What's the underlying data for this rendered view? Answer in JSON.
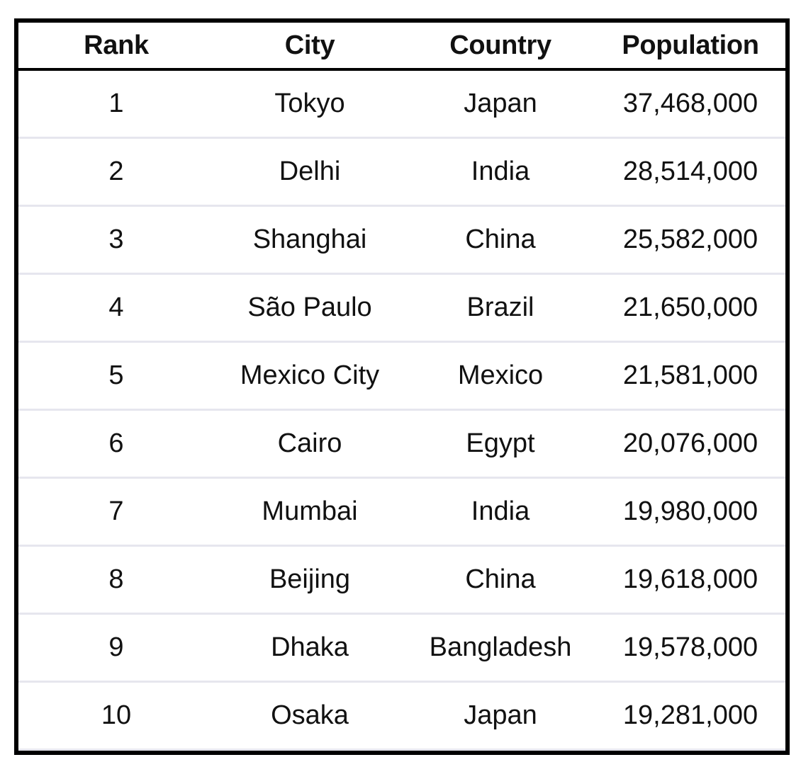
{
  "table": {
    "columns": [
      "Rank",
      "City",
      "Country",
      "Population"
    ],
    "rows": [
      {
        "rank": "1",
        "city": "Tokyo",
        "country": "Japan",
        "population": "37,468,000"
      },
      {
        "rank": "2",
        "city": "Delhi",
        "country": "India",
        "population": "28,514,000"
      },
      {
        "rank": "3",
        "city": "Shanghai",
        "country": "China",
        "population": "25,582,000"
      },
      {
        "rank": "4",
        "city": "São Paulo",
        "country": "Brazil",
        "population": "21,650,000"
      },
      {
        "rank": "5",
        "city": "Mexico City",
        "country": "Mexico",
        "population": "21,581,000"
      },
      {
        "rank": "6",
        "city": "Cairo",
        "country": "Egypt",
        "population": "20,076,000"
      },
      {
        "rank": "7",
        "city": "Mumbai",
        "country": "India",
        "population": "19,980,000"
      },
      {
        "rank": "8",
        "city": "Beijing",
        "country": "China",
        "population": "19,618,000"
      },
      {
        "rank": "9",
        "city": "Dhaka",
        "country": "Bangladesh",
        "population": "19,578,000"
      },
      {
        "rank": "10",
        "city": "Osaka",
        "country": "Japan",
        "population": "19,281,000"
      }
    ]
  },
  "colors": {
    "border": "#000000",
    "row_divider": "#e6e6ee",
    "text": "#111111",
    "background": "#ffffff"
  }
}
